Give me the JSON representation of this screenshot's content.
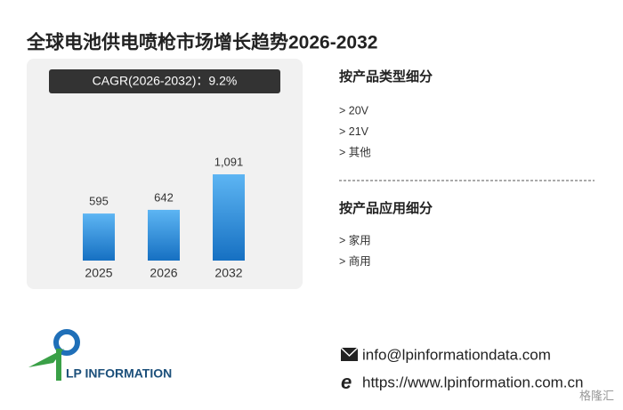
{
  "chart_data": {
    "type": "bar",
    "title": "全球电池供电喷枪市场增长趋势2026-2032",
    "annotation": "CAGR(2026-2032)：9.2%",
    "categories": [
      "2025",
      "2026",
      "2032"
    ],
    "values": [
      595,
      642,
      1091
    ],
    "value_labels": [
      "595",
      "642",
      "1,091"
    ],
    "color": "#2a8ad8"
  },
  "sections": [
    {
      "heading": "按产品类型细分",
      "items": [
        "> 20V",
        "> 21V",
        "> 其他"
      ]
    },
    {
      "heading": "按产品应用细分",
      "items": [
        "> 家用",
        "> 商用"
      ]
    }
  ],
  "logo": "LP INFORMATION",
  "contact": {
    "email": "info@lpinformationdata.com",
    "url": "https://www.lpinformation.com.cn"
  },
  "watermark": "格隆汇"
}
